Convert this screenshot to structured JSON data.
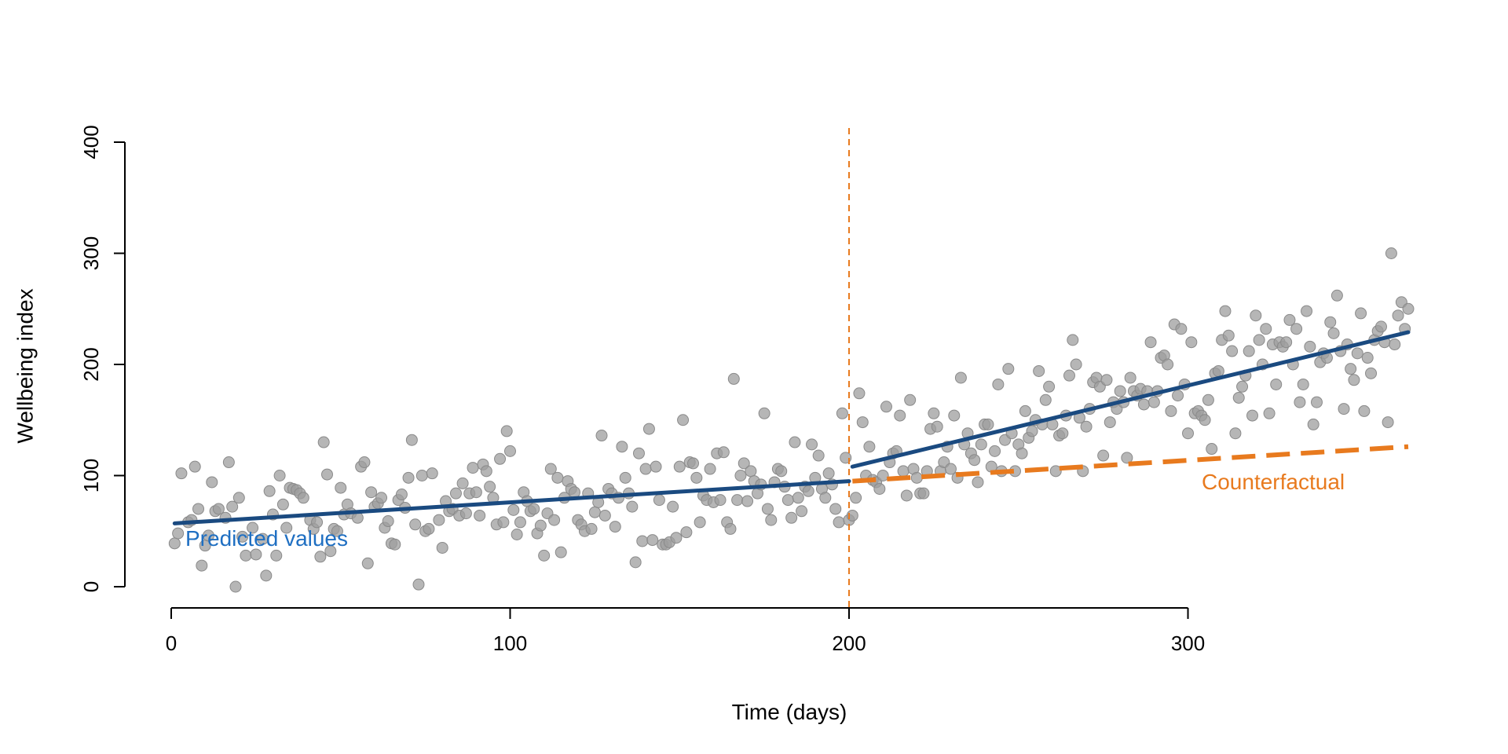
{
  "chart_data": {
    "type": "scatter",
    "title": "",
    "xlabel": "Time (days)",
    "ylabel": "Wellbeing index",
    "xlim": [
      0,
      365
    ],
    "ylim": [
      0,
      400
    ],
    "x_ticks": [
      0,
      100,
      200,
      300
    ],
    "y_ticks": [
      0,
      100,
      200,
      300,
      400
    ],
    "grid": false,
    "intervention_day": 200,
    "colors": {
      "points": "#9e9e9e",
      "predicted": "#1a4a80",
      "predicted_label": "#1f6fc2",
      "counterfactual": "#e87a1e",
      "intervention_line": "#e87a1e"
    },
    "annotations": {
      "predicted_label": "Predicted values",
      "counterfactual_label": "Counterfactual"
    },
    "predicted_segments": [
      {
        "x": [
          1,
          200
        ],
        "y": [
          57,
          95
        ]
      },
      {
        "x": [
          201,
          365
        ],
        "y": [
          108,
          229
        ]
      }
    ],
    "counterfactual_line": {
      "x": [
        201,
        365
      ],
      "y": [
        95,
        126
      ]
    },
    "points": [
      [
        1,
        39
      ],
      [
        2,
        48
      ],
      [
        3,
        102
      ],
      [
        5,
        58
      ],
      [
        6,
        60
      ],
      [
        7,
        108
      ],
      [
        8,
        70
      ],
      [
        9,
        19
      ],
      [
        10,
        37
      ],
      [
        11,
        46
      ],
      [
        12,
        94
      ],
      [
        13,
        68
      ],
      [
        14,
        70
      ],
      [
        16,
        62
      ],
      [
        17,
        112
      ],
      [
        18,
        72
      ],
      [
        19,
        0
      ],
      [
        20,
        80
      ],
      [
        21,
        45
      ],
      [
        22,
        28
      ],
      [
        24,
        53
      ],
      [
        25,
        29
      ],
      [
        27,
        43
      ],
      [
        28,
        10
      ],
      [
        29,
        86
      ],
      [
        30,
        65
      ],
      [
        31,
        28
      ],
      [
        32,
        100
      ],
      [
        33,
        74
      ],
      [
        34,
        53
      ],
      [
        35,
        89
      ],
      [
        36,
        88
      ],
      [
        37,
        87
      ],
      [
        38,
        84
      ],
      [
        39,
        80
      ],
      [
        41,
        60
      ],
      [
        42,
        52
      ],
      [
        43,
        58
      ],
      [
        44,
        27
      ],
      [
        45,
        130
      ],
      [
        46,
        101
      ],
      [
        47,
        32
      ],
      [
        48,
        52
      ],
      [
        49,
        50
      ],
      [
        50,
        89
      ],
      [
        51,
        65
      ],
      [
        52,
        74
      ],
      [
        53,
        66
      ],
      [
        55,
        62
      ],
      [
        56,
        108
      ],
      [
        57,
        112
      ],
      [
        58,
        21
      ],
      [
        59,
        85
      ],
      [
        60,
        72
      ],
      [
        61,
        75
      ],
      [
        62,
        80
      ],
      [
        63,
        53
      ],
      [
        64,
        59
      ],
      [
        65,
        39
      ],
      [
        66,
        38
      ],
      [
        67,
        78
      ],
      [
        68,
        83
      ],
      [
        69,
        71
      ],
      [
        70,
        98
      ],
      [
        71,
        132
      ],
      [
        72,
        56
      ],
      [
        73,
        2
      ],
      [
        74,
        100
      ],
      [
        75,
        50
      ],
      [
        76,
        52
      ],
      [
        77,
        102
      ],
      [
        79,
        60
      ],
      [
        80,
        35
      ],
      [
        81,
        77
      ],
      [
        82,
        68
      ],
      [
        83,
        70
      ],
      [
        84,
        84
      ],
      [
        85,
        64
      ],
      [
        86,
        93
      ],
      [
        87,
        66
      ],
      [
        88,
        84
      ],
      [
        89,
        107
      ],
      [
        90,
        85
      ],
      [
        91,
        64
      ],
      [
        92,
        110
      ],
      [
        93,
        104
      ],
      [
        94,
        90
      ],
      [
        95,
        80
      ],
      [
        96,
        56
      ],
      [
        97,
        115
      ],
      [
        98,
        58
      ],
      [
        99,
        140
      ],
      [
        100,
        122
      ],
      [
        101,
        69
      ],
      [
        102,
        47
      ],
      [
        103,
        58
      ],
      [
        104,
        85
      ],
      [
        105,
        77
      ],
      [
        106,
        68
      ],
      [
        107,
        70
      ],
      [
        108,
        48
      ],
      [
        109,
        55
      ],
      [
        110,
        28
      ],
      [
        111,
        66
      ],
      [
        112,
        106
      ],
      [
        113,
        60
      ],
      [
        114,
        98
      ],
      [
        115,
        31
      ],
      [
        116,
        80
      ],
      [
        117,
        95
      ],
      [
        118,
        88
      ],
      [
        119,
        85
      ],
      [
        120,
        60
      ],
      [
        121,
        56
      ],
      [
        122,
        50
      ],
      [
        123,
        84
      ],
      [
        124,
        52
      ],
      [
        125,
        67
      ],
      [
        126,
        76
      ],
      [
        127,
        136
      ],
      [
        128,
        64
      ],
      [
        129,
        88
      ],
      [
        130,
        84
      ],
      [
        131,
        54
      ],
      [
        132,
        80
      ],
      [
        133,
        126
      ],
      [
        134,
        98
      ],
      [
        135,
        84
      ],
      [
        136,
        72
      ],
      [
        137,
        22
      ],
      [
        138,
        120
      ],
      [
        139,
        41
      ],
      [
        140,
        106
      ],
      [
        141,
        142
      ],
      [
        142,
        42
      ],
      [
        143,
        108
      ],
      [
        144,
        78
      ],
      [
        145,
        38
      ],
      [
        146,
        38
      ],
      [
        147,
        40
      ],
      [
        148,
        72
      ],
      [
        149,
        44
      ],
      [
        150,
        108
      ],
      [
        151,
        150
      ],
      [
        152,
        49
      ],
      [
        153,
        112
      ],
      [
        154,
        111
      ],
      [
        155,
        98
      ],
      [
        156,
        58
      ],
      [
        157,
        82
      ],
      [
        158,
        78
      ],
      [
        159,
        106
      ],
      [
        160,
        76
      ],
      [
        161,
        120
      ],
      [
        162,
        78
      ],
      [
        163,
        121
      ],
      [
        164,
        58
      ],
      [
        165,
        52
      ],
      [
        166,
        187
      ],
      [
        167,
        78
      ],
      [
        168,
        100
      ],
      [
        169,
        111
      ],
      [
        170,
        77
      ],
      [
        171,
        104
      ],
      [
        172,
        95
      ],
      [
        173,
        84
      ],
      [
        174,
        92
      ],
      [
        175,
        156
      ],
      [
        176,
        70
      ],
      [
        177,
        60
      ],
      [
        178,
        94
      ],
      [
        179,
        106
      ],
      [
        180,
        104
      ],
      [
        181,
        90
      ],
      [
        182,
        78
      ],
      [
        183,
        62
      ],
      [
        184,
        130
      ],
      [
        185,
        80
      ],
      [
        186,
        68
      ],
      [
        187,
        90
      ],
      [
        188,
        86
      ],
      [
        189,
        128
      ],
      [
        190,
        98
      ],
      [
        191,
        118
      ],
      [
        192,
        88
      ],
      [
        193,
        80
      ],
      [
        194,
        102
      ],
      [
        195,
        92
      ],
      [
        196,
        70
      ],
      [
        197,
        58
      ],
      [
        198,
        156
      ],
      [
        199,
        116
      ],
      [
        200,
        60
      ],
      [
        201,
        64
      ],
      [
        202,
        80
      ],
      [
        203,
        174
      ],
      [
        204,
        148
      ],
      [
        205,
        100
      ],
      [
        206,
        126
      ],
      [
        207,
        96
      ],
      [
        208,
        94
      ],
      [
        209,
        88
      ],
      [
        210,
        100
      ],
      [
        211,
        162
      ],
      [
        212,
        112
      ],
      [
        213,
        120
      ],
      [
        214,
        122
      ],
      [
        215,
        154
      ],
      [
        216,
        104
      ],
      [
        217,
        82
      ],
      [
        218,
        168
      ],
      [
        219,
        106
      ],
      [
        220,
        98
      ],
      [
        221,
        84
      ],
      [
        222,
        84
      ],
      [
        223,
        104
      ],
      [
        224,
        142
      ],
      [
        225,
        156
      ],
      [
        226,
        144
      ],
      [
        227,
        104
      ],
      [
        228,
        112
      ],
      [
        229,
        126
      ],
      [
        230,
        106
      ],
      [
        231,
        154
      ],
      [
        232,
        98
      ],
      [
        233,
        188
      ],
      [
        234,
        128
      ],
      [
        235,
        138
      ],
      [
        236,
        120
      ],
      [
        237,
        114
      ],
      [
        238,
        94
      ],
      [
        239,
        128
      ],
      [
        240,
        146
      ],
      [
        241,
        146
      ],
      [
        242,
        108
      ],
      [
        243,
        122
      ],
      [
        244,
        182
      ],
      [
        245,
        104
      ],
      [
        246,
        132
      ],
      [
        247,
        196
      ],
      [
        248,
        138
      ],
      [
        249,
        104
      ],
      [
        250,
        128
      ],
      [
        251,
        120
      ],
      [
        252,
        158
      ],
      [
        253,
        134
      ],
      [
        254,
        140
      ],
      [
        255,
        150
      ],
      [
        256,
        194
      ],
      [
        257,
        146
      ],
      [
        258,
        168
      ],
      [
        259,
        180
      ],
      [
        260,
        146
      ],
      [
        261,
        104
      ],
      [
        262,
        136
      ],
      [
        263,
        138
      ],
      [
        264,
        154
      ],
      [
        265,
        190
      ],
      [
        266,
        222
      ],
      [
        267,
        200
      ],
      [
        268,
        152
      ],
      [
        269,
        104
      ],
      [
        270,
        144
      ],
      [
        271,
        160
      ],
      [
        272,
        184
      ],
      [
        273,
        188
      ],
      [
        274,
        180
      ],
      [
        275,
        118
      ],
      [
        276,
        186
      ],
      [
        277,
        148
      ],
      [
        278,
        166
      ],
      [
        279,
        160
      ],
      [
        280,
        176
      ],
      [
        281,
        166
      ],
      [
        282,
        116
      ],
      [
        283,
        188
      ],
      [
        284,
        176
      ],
      [
        285,
        172
      ],
      [
        286,
        178
      ],
      [
        287,
        164
      ],
      [
        288,
        176
      ],
      [
        289,
        220
      ],
      [
        290,
        166
      ],
      [
        291,
        176
      ],
      [
        292,
        206
      ],
      [
        293,
        208
      ],
      [
        294,
        200
      ],
      [
        295,
        158
      ],
      [
        296,
        236
      ],
      [
        297,
        172
      ],
      [
        298,
        232
      ],
      [
        299,
        182
      ],
      [
        300,
        138
      ],
      [
        301,
        220
      ],
      [
        302,
        156
      ],
      [
        303,
        158
      ],
      [
        304,
        154
      ],
      [
        305,
        150
      ],
      [
        306,
        168
      ],
      [
        307,
        124
      ],
      [
        308,
        192
      ],
      [
        309,
        194
      ],
      [
        310,
        222
      ],
      [
        311,
        248
      ],
      [
        312,
        226
      ],
      [
        313,
        212
      ],
      [
        314,
        138
      ],
      [
        315,
        170
      ],
      [
        316,
        180
      ],
      [
        317,
        190
      ],
      [
        318,
        212
      ],
      [
        319,
        154
      ],
      [
        320,
        244
      ],
      [
        321,
        222
      ],
      [
        322,
        200
      ],
      [
        323,
        232
      ],
      [
        324,
        156
      ],
      [
        325,
        218
      ],
      [
        326,
        182
      ],
      [
        327,
        220
      ],
      [
        328,
        216
      ],
      [
        329,
        220
      ],
      [
        330,
        240
      ],
      [
        331,
        200
      ],
      [
        332,
        232
      ],
      [
        333,
        166
      ],
      [
        334,
        182
      ],
      [
        335,
        248
      ],
      [
        336,
        216
      ],
      [
        337,
        146
      ],
      [
        338,
        166
      ],
      [
        339,
        202
      ],
      [
        340,
        210
      ],
      [
        341,
        206
      ],
      [
        342,
        238
      ],
      [
        343,
        228
      ],
      [
        344,
        262
      ],
      [
        345,
        212
      ],
      [
        346,
        160
      ],
      [
        347,
        218
      ],
      [
        348,
        196
      ],
      [
        349,
        186
      ],
      [
        350,
        210
      ],
      [
        351,
        246
      ],
      [
        352,
        158
      ],
      [
        353,
        206
      ],
      [
        354,
        192
      ],
      [
        355,
        222
      ],
      [
        356,
        230
      ],
      [
        357,
        234
      ],
      [
        358,
        220
      ],
      [
        359,
        148
      ],
      [
        360,
        300
      ],
      [
        361,
        218
      ],
      [
        362,
        244
      ],
      [
        363,
        256
      ],
      [
        364,
        232
      ],
      [
        365,
        250
      ]
    ]
  }
}
